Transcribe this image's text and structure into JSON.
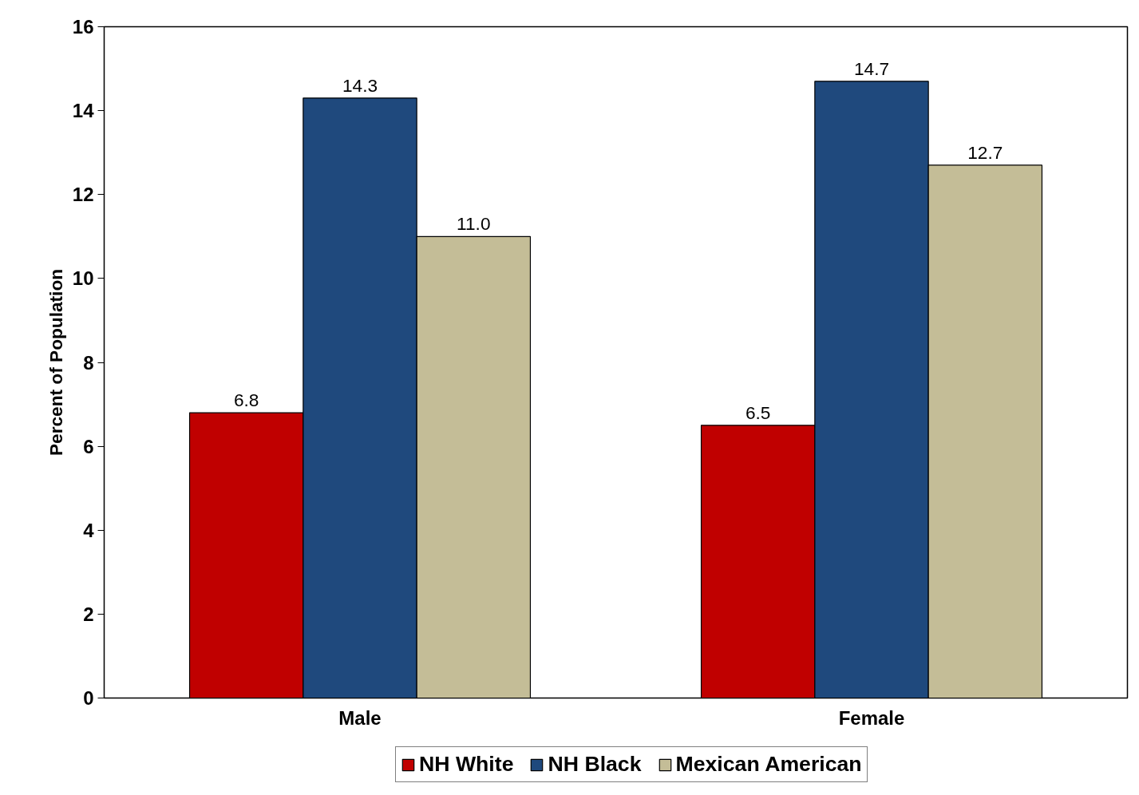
{
  "chart_data": {
    "type": "bar",
    "ylabel": "Percent of Population",
    "categories": [
      "Male",
      "Female"
    ],
    "series": [
      {
        "name": "NH White",
        "color": "#c00000",
        "values": [
          6.8,
          6.5
        ],
        "value_labels": [
          "6.8",
          "6.5"
        ]
      },
      {
        "name": "NH Black",
        "color": "#1f497d",
        "values": [
          14.3,
          14.7
        ],
        "value_labels": [
          "14.3",
          "14.7"
        ]
      },
      {
        "name": "Mexican American",
        "color": "#c4bd97",
        "values": [
          11.0,
          12.7
        ],
        "value_labels": [
          "11.0",
          "12.7"
        ]
      }
    ],
    "ylim": [
      0,
      16
    ],
    "yticks": [
      0,
      2,
      4,
      6,
      8,
      10,
      12,
      14,
      16
    ],
    "grid": false,
    "legend": "bottom"
  }
}
